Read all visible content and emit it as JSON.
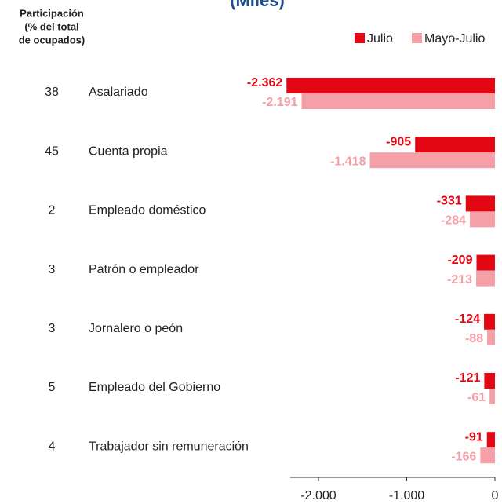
{
  "chart_data": {
    "type": "bar",
    "orientation": "horizontal",
    "title": "(Miles)",
    "participation_label": [
      "Participación",
      "(% del total",
      "de ocupados)"
    ],
    "participation": [
      38,
      45,
      2,
      3,
      3,
      5,
      4
    ],
    "categories": [
      "Asalariado",
      "Cuenta propia",
      "Empleado doméstico",
      "Patrón o empleador",
      "Jornalero o peón",
      "Empleado del Gobierno",
      "Trabajador sin remuneración"
    ],
    "series": [
      {
        "name": "Julio",
        "color": "#e30613",
        "values": [
          -2362,
          -905,
          -331,
          -209,
          -124,
          -121,
          -91
        ],
        "value_labels": [
          "-2.362",
          "-905",
          "-331",
          "-209",
          "-124",
          "-121",
          "-91"
        ]
      },
      {
        "name": "Mayo-Julio",
        "color": "#f4a0a6",
        "values": [
          -2191,
          -1418,
          -284,
          -213,
          -88,
          -61,
          -166
        ],
        "value_labels": [
          "-2.191",
          "-1.418",
          "-284",
          "-213",
          "-88",
          "-61",
          "-166"
        ]
      }
    ],
    "xlim": [
      -2400,
      0
    ],
    "xticks": [
      {
        "value": -2000,
        "label": "-2.000"
      },
      {
        "value": -1000,
        "label": "-1.000"
      },
      0
    ],
    "legend": "top-right"
  }
}
